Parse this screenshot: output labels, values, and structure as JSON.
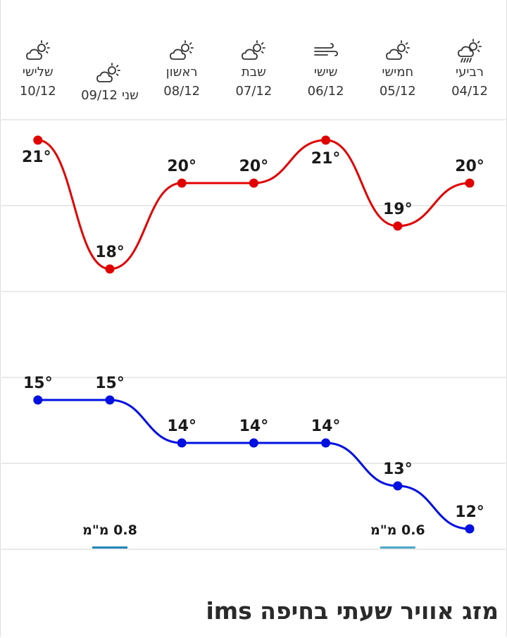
{
  "days": [
    {
      "name": "רביעי",
      "date": "04/12",
      "icon": "rain-cloud-sun-icon"
    },
    {
      "name": "חמישי",
      "date": "05/12",
      "icon": "partly-cloudy-icon"
    },
    {
      "name": "שישי",
      "date": "06/12",
      "icon": "wind-icon"
    },
    {
      "name": "שבת",
      "date": "07/12",
      "icon": "partly-cloudy-icon"
    },
    {
      "name": "ראשון",
      "date": "08/12",
      "icon": "partly-cloudy-icon"
    },
    {
      "name": "שני",
      "date": "09/12",
      "icon": "partly-cloudy-icon"
    },
    {
      "name": "שלישי",
      "date": "10/12",
      "icon": "partly-cloudy-icon"
    }
  ],
  "chart_data": {
    "type": "line",
    "categories": [
      "04/12",
      "05/12",
      "06/12",
      "07/12",
      "08/12",
      "09/12",
      "10/12"
    ],
    "series": [
      {
        "values": [
          20,
          19,
          21,
          20,
          20,
          18,
          21
        ],
        "color": "#e00000"
      },
      {
        "values": [
          12,
          13,
          14,
          14,
          14,
          15,
          15
        ],
        "color": "#0010e0"
      }
    ],
    "precipitation": [
      {
        "category": "05/12",
        "label": "0.6 מ\"מ",
        "color": "#4aa8c8"
      },
      {
        "category": "09/12",
        "label": "0.8 מ\"מ",
        "color": "#1f86b8"
      }
    ],
    "value_label_suffix": "°",
    "grid": true
  },
  "title": "מזג אוויר שעתי בחיפה ims"
}
